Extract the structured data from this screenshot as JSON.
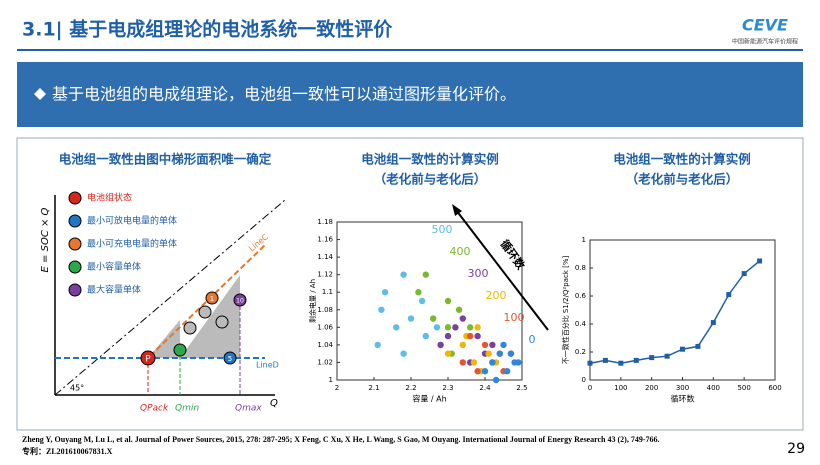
{
  "header": {
    "title": "3.1| 基于电成组理论的电池系统一致性评价",
    "logo": "CEVE",
    "logo_sub": "中国新能源汽车评价规程"
  },
  "banner": "基于电池组的电成组理论，电池组一致性可以通过图形量化评价。",
  "diagram": {
    "title": "电池组一致性由图中梯形面积唯一确定",
    "y_axis": "E = SOC × Q",
    "x_axis": "Q",
    "angle": "45°",
    "legend": [
      {
        "label": "电池组状态",
        "color": "#d9261c",
        "mark": "P"
      },
      {
        "label": "最小可放电电量的单体",
        "color": "#1f77c4"
      },
      {
        "label": "最小可充电电量的单体",
        "color": "#e5772e"
      },
      {
        "label": "最小容量单体",
        "color": "#2aa84a"
      },
      {
        "label": "最大容量单体",
        "color": "#7b3fa0"
      }
    ],
    "line_c": "LineC",
    "line_d": "LineD",
    "q_pack": "QPack",
    "q_min": "Qmin",
    "q_max": "Qmax",
    "cells": [
      "1",
      "5",
      "10"
    ]
  },
  "chart_data": [
    {
      "type": "scatter",
      "title": "电池组一致性的计算实例",
      "subtitle": "（老化前与老化后）",
      "x_label": "容量 / Ah",
      "y_label": "剩余电量 / Ah",
      "annotation": "循环数",
      "xlim": [
        2,
        2.5
      ],
      "xticks": [
        2,
        2.1,
        2.2,
        2.3,
        2.4,
        2.5
      ],
      "ylim": [
        1,
        1.18
      ],
      "yticks": [
        1,
        1.02,
        1.04,
        1.06,
        1.08,
        1.1,
        1.12,
        1.14,
        1.16,
        1.18
      ],
      "series": [
        {
          "name": "500",
          "color": "#5bbde8",
          "x": [
            2.12,
            2.13,
            2.16,
            2.18,
            2.2,
            2.24,
            2.11,
            2.18,
            2.23,
            2.27
          ],
          "values": [
            1.08,
            1.1,
            1.06,
            1.12,
            1.07,
            1.05,
            1.04,
            1.03,
            1.09,
            1.06
          ]
        },
        {
          "name": "400",
          "color": "#7ab92e",
          "x": [
            2.22,
            2.26,
            2.3,
            2.28,
            2.33,
            2.35,
            2.24,
            2.31,
            2.36,
            2.3
          ],
          "values": [
            1.1,
            1.07,
            1.06,
            1.04,
            1.08,
            1.05,
            1.12,
            1.03,
            1.06,
            1.09
          ]
        },
        {
          "name": "300",
          "color": "#7b3f9e",
          "x": [
            2.28,
            2.32,
            2.36,
            2.38,
            2.4,
            2.34,
            2.42,
            2.3
          ],
          "values": [
            1.04,
            1.06,
            1.02,
            1.05,
            1.03,
            1.07,
            1.04,
            1.05
          ]
        },
        {
          "name": "200",
          "color": "#f2b705",
          "x": [
            2.3,
            2.34,
            2.37,
            2.39,
            2.41,
            2.35,
            2.43,
            2.38
          ],
          "values": [
            1.03,
            1.04,
            1.02,
            1.01,
            1.03,
            1.05,
            1.02,
            1.06
          ]
        },
        {
          "name": "100",
          "color": "#e4572e",
          "x": [
            2.34,
            2.38,
            2.4,
            2.42,
            2.44,
            2.36,
            2.45,
            2.47
          ],
          "values": [
            1.02,
            1.01,
            1.04,
            1.02,
            1.03,
            1.05,
            1.01,
            1.03
          ]
        },
        {
          "name": "0",
          "color": "#2e86de",
          "x": [
            2.4,
            2.42,
            2.44,
            2.46,
            2.48,
            2.45,
            2.43,
            2.47,
            2.49
          ],
          "values": [
            1.01,
            1.02,
            1.03,
            1.01,
            1.02,
            1.04,
            1.0,
            1.03,
            1.02
          ]
        }
      ]
    },
    {
      "type": "line",
      "title": "电池组一致性的计算实例",
      "subtitle": "（老化前与老化后）",
      "x_label": "循环数",
      "y_label": "不一致性百分比 S1/2/Q²pack [%]",
      "xlim": [
        0,
        600
      ],
      "xticks": [
        0,
        100,
        200,
        300,
        400,
        500,
        600
      ],
      "ylim": [
        0,
        1
      ],
      "yticks": [
        0,
        0.2,
        0.4,
        0.6,
        0.8,
        1
      ],
      "series": [
        {
          "name": "不一致性百分比",
          "color": "#1f5fa8",
          "x": [
            0,
            50,
            100,
            150,
            200,
            250,
            300,
            350,
            400,
            450,
            500,
            550
          ],
          "values": [
            0.12,
            0.14,
            0.12,
            0.14,
            0.16,
            0.17,
            0.22,
            0.24,
            0.41,
            0.61,
            0.76,
            0.85
          ]
        }
      ]
    }
  ],
  "references": "Zheng Y, Ouyang M, Lu L, et al. Journal of Power Sources, 2015, 278: 287-295; X Feng, C Xu, X He, L Wang, S Gao, M Ouyang. International Journal of Energy Research 43 (2), 749-766.",
  "patent": "专利：ZL201610067831.X",
  "page": "29"
}
